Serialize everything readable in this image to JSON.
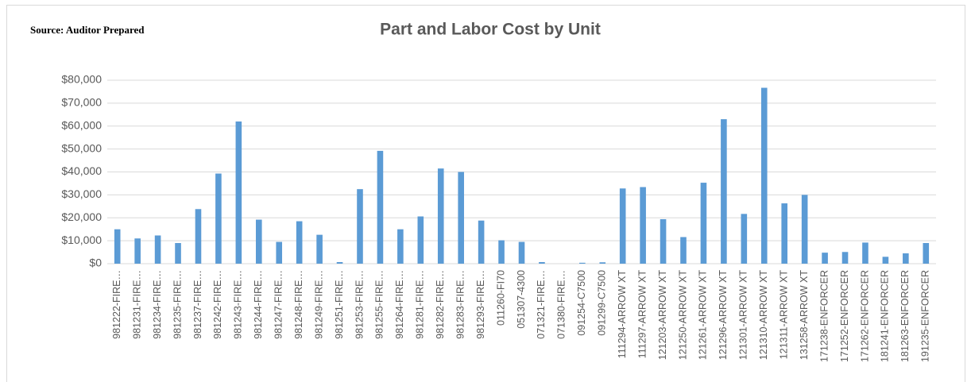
{
  "source": "Source: Auditor Prepared",
  "chart_data": {
    "type": "bar",
    "title": "Part and Labor Cost by Unit",
    "categories": [
      "981222-FIRE…",
      "981231-FIRE…",
      "981234-FIRE…",
      "981235-FIRE…",
      "981237-FIRE…",
      "981242-FIRE…",
      "981243-FIRE…",
      "981244-FIRE…",
      "981247-FIRE…",
      "981248-FIRE…",
      "981249-FIRE…",
      "981251-FIRE…",
      "981253-FIRE…",
      "981255-FIRE…",
      "981264-FIRE…",
      "981281-FIRE…",
      "981282-FIRE…",
      "981283-FIRE…",
      "981293-FIRE…",
      "011260-FI70",
      "051307-4300",
      "071321-FIRE…",
      "071380-FIRE…",
      "091254-C7500",
      "091299-C7500",
      "111294-ARROW XT",
      "111297-ARROW XT",
      "121203-ARROW XT",
      "121250-ARROW XT",
      "121261-ARROW XT",
      "121296-ARROW XT",
      "121301-ARROW XT",
      "121310-ARROW XT",
      "121311-ARROW XT",
      "131258-ARROW XT",
      "171238-ENFORCER",
      "171252-ENFORCER",
      "171262-ENFORCER",
      "181241-ENFORCER",
      "181263-ENFORCER",
      "191235-ENFORCER"
    ],
    "values": [
      15000,
      11000,
      12300,
      9000,
      23800,
      39300,
      62000,
      19200,
      9500,
      18500,
      12600,
      700,
      32500,
      49200,
      15000,
      20600,
      41500,
      40000,
      18800,
      10200,
      9500,
      700,
      0,
      400,
      600,
      32800,
      33400,
      19400,
      11600,
      35300,
      63000,
      21700,
      76700,
      26300,
      30000,
      4800,
      5100,
      9200,
      3000,
      4500,
      9000
    ],
    "color": "#5b9bd5",
    "ylim": [
      0,
      80000
    ],
    "yticks": [
      {
        "value": 0,
        "label": "$0"
      },
      {
        "value": 10000,
        "label": "$10,000"
      },
      {
        "value": 20000,
        "label": "$20,000"
      },
      {
        "value": 30000,
        "label": "$30,000"
      },
      {
        "value": 40000,
        "label": "$40,000"
      },
      {
        "value": 50000,
        "label": "$50,000"
      },
      {
        "value": 60000,
        "label": "$60,000"
      },
      {
        "value": 70000,
        "label": "$70,000"
      },
      {
        "value": 80000,
        "label": "$80,000"
      }
    ],
    "grid": true
  }
}
